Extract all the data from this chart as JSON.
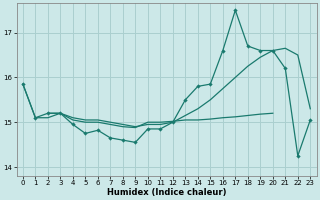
{
  "xlabel": "Humidex (Indice chaleur)",
  "xlim": [
    -0.5,
    23.5
  ],
  "ylim": [
    13.8,
    17.65
  ],
  "yticks": [
    14,
    15,
    16,
    17
  ],
  "xticks": [
    0,
    1,
    2,
    3,
    4,
    5,
    6,
    7,
    8,
    9,
    10,
    11,
    12,
    13,
    14,
    15,
    16,
    17,
    18,
    19,
    20,
    21,
    22,
    23
  ],
  "bg_color": "#cce8e8",
  "grid_color": "#aacfcf",
  "line_color": "#1a7a6e",
  "line1_x": [
    0,
    1,
    2,
    3,
    4,
    5,
    6,
    7,
    8,
    9,
    10,
    11,
    12,
    13,
    14,
    15,
    16,
    17,
    18,
    19,
    20,
    21,
    22,
    23
  ],
  "line1_y": [
    15.85,
    15.1,
    15.2,
    15.2,
    14.95,
    14.75,
    14.82,
    14.65,
    14.6,
    14.55,
    14.85,
    14.85,
    15.0,
    15.5,
    15.8,
    15.85,
    16.6,
    17.5,
    16.7,
    16.6,
    16.6,
    16.2,
    14.25,
    15.05
  ],
  "line2_x": [
    0,
    1,
    2,
    3,
    4,
    5,
    6,
    7,
    8,
    9,
    10,
    11,
    12,
    13,
    14,
    15,
    16,
    17,
    18,
    19,
    20,
    21,
    22,
    23
  ],
  "line2_y": [
    15.85,
    15.1,
    15.1,
    15.2,
    15.1,
    15.05,
    15.05,
    15.0,
    14.95,
    14.9,
    14.95,
    14.95,
    15.0,
    15.15,
    15.3,
    15.5,
    15.75,
    16.0,
    16.25,
    16.45,
    16.6,
    16.65,
    16.5,
    15.3
  ],
  "line3_x": [
    2,
    3,
    4,
    5,
    6,
    7,
    8,
    9,
    10,
    11,
    12,
    13,
    14,
    15,
    16,
    17,
    18,
    19,
    20
  ],
  "line3_y": [
    15.2,
    15.2,
    15.05,
    15.0,
    15.0,
    14.95,
    14.9,
    14.88,
    15.0,
    15.0,
    15.02,
    15.05,
    15.05,
    15.07,
    15.1,
    15.12,
    15.15,
    15.18,
    15.2
  ]
}
